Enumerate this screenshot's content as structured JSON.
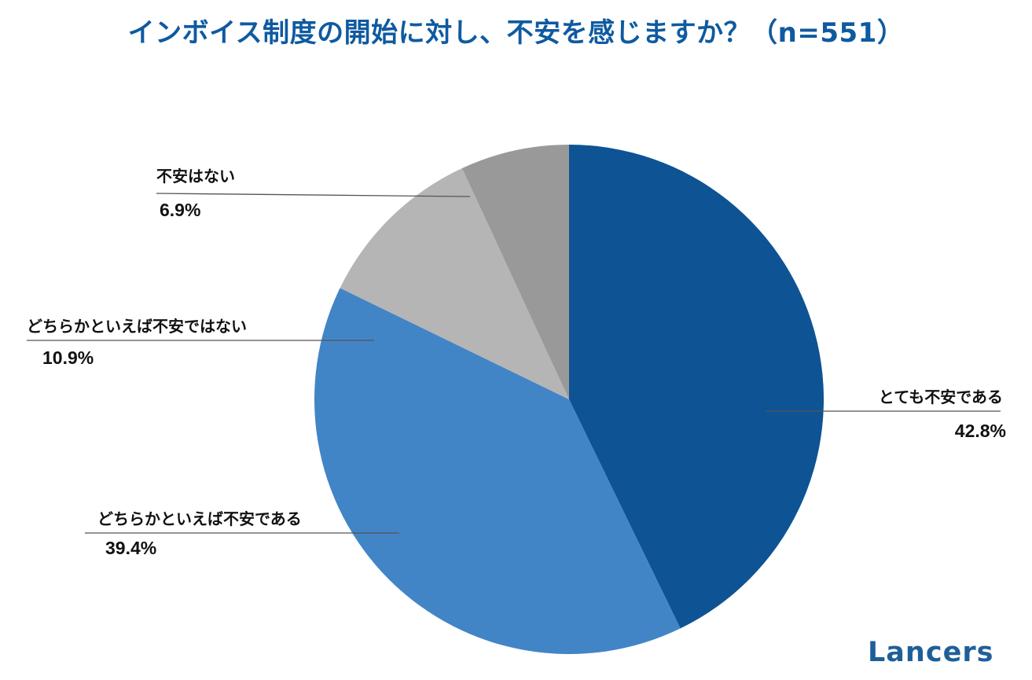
{
  "chart_data": {
    "type": "pie",
    "title": "インボイス制度の開始に対し、不安を感じますか？（n=551）",
    "slices": [
      {
        "label": "とても不安である",
        "value": 42.8,
        "value_text": "42.8%",
        "color": "#0e5394"
      },
      {
        "label": "どちらかといえば不安である",
        "value": 39.4,
        "value_text": "39.4%",
        "color": "#4285c6"
      },
      {
        "label": "どちらかといえば不安ではない",
        "value": 10.9,
        "value_text": "10.9%",
        "color": "#b5b5b5"
      },
      {
        "label": "不安はない",
        "value": 6.9,
        "value_text": "6.9%",
        "color": "#999999"
      }
    ],
    "start_angle": "12 o'clock",
    "direction": "clockwise",
    "legend": "none"
  },
  "brand": {
    "logo_text": "Lancers",
    "color": "#1f5f99"
  }
}
